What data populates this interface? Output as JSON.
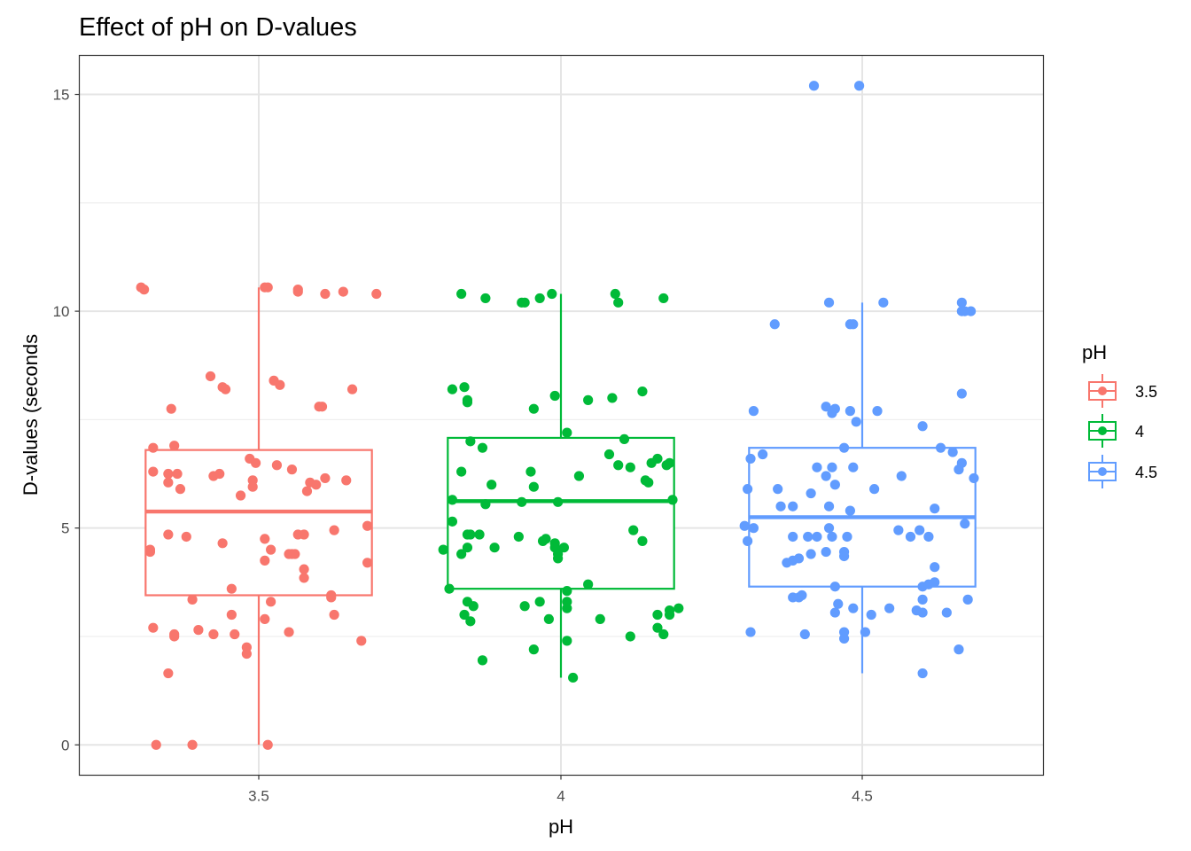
{
  "chart_data": {
    "type": "boxplot",
    "title": "Effect of pH on D-values",
    "xlabel": "pH",
    "ylabel": "D-values (seconds",
    "ylim": [
      -0.7,
      15.9
    ],
    "yticks": [
      0,
      5,
      10,
      15
    ],
    "grid": true,
    "legend": {
      "title": "pH",
      "position": "right"
    },
    "categories": [
      "3.5",
      "4",
      "4.5"
    ],
    "series": [
      {
        "name": "3.5",
        "color": "#F8766D",
        "box": {
          "lower_whisker": 0.0,
          "q1": 3.45,
          "median": 5.38,
          "q3": 6.8,
          "upper_whisker": 10.55
        },
        "points": [
          [
            -0.39,
            10.55
          ],
          [
            -0.38,
            10.5
          ],
          [
            0.02,
            10.55
          ],
          [
            0.03,
            10.55
          ],
          [
            0.13,
            10.5
          ],
          [
            0.13,
            10.45
          ],
          [
            0.22,
            10.4
          ],
          [
            0.28,
            10.45
          ],
          [
            0.39,
            10.4
          ],
          [
            -0.16,
            8.5
          ],
          [
            -0.12,
            8.25
          ],
          [
            -0.11,
            8.2
          ],
          [
            0.05,
            8.4
          ],
          [
            0.07,
            8.3
          ],
          [
            0.2,
            7.8
          ],
          [
            0.21,
            7.8
          ],
          [
            0.31,
            8.2
          ],
          [
            -0.29,
            7.75
          ],
          [
            -0.35,
            6.85
          ],
          [
            -0.28,
            6.9
          ],
          [
            -0.35,
            6.3
          ],
          [
            -0.3,
            6.25
          ],
          [
            -0.27,
            6.25
          ],
          [
            -0.3,
            6.05
          ],
          [
            -0.26,
            5.9
          ],
          [
            -0.15,
            6.2
          ],
          [
            -0.13,
            6.25
          ],
          [
            -0.06,
            5.75
          ],
          [
            -0.03,
            6.6
          ],
          [
            -0.02,
            6.1
          ],
          [
            -0.01,
            6.5
          ],
          [
            -0.02,
            5.95
          ],
          [
            0.06,
            6.45
          ],
          [
            0.11,
            6.35
          ],
          [
            0.16,
            5.85
          ],
          [
            0.17,
            6.05
          ],
          [
            0.19,
            6.0
          ],
          [
            0.22,
            6.15
          ],
          [
            0.29,
            6.1
          ],
          [
            -0.3,
            4.85
          ],
          [
            -0.24,
            4.8
          ],
          [
            -0.12,
            4.65
          ],
          [
            0.02,
            4.75
          ],
          [
            0.04,
            4.5
          ],
          [
            0.02,
            4.25
          ],
          [
            0.1,
            4.4
          ],
          [
            0.11,
            4.4
          ],
          [
            0.12,
            4.4
          ],
          [
            0.13,
            4.85
          ],
          [
            0.15,
            4.85
          ],
          [
            0.15,
            4.05
          ],
          [
            0.15,
            3.85
          ],
          [
            0.25,
            4.95
          ],
          [
            0.36,
            5.05
          ],
          [
            0.36,
            4.2
          ],
          [
            -0.36,
            4.45
          ],
          [
            -0.36,
            4.5
          ],
          [
            -0.22,
            3.35
          ],
          [
            -0.09,
            3.6
          ],
          [
            0.04,
            3.3
          ],
          [
            0.24,
            3.45
          ],
          [
            0.24,
            3.4
          ],
          [
            0.25,
            3.0
          ],
          [
            -0.09,
            3.0
          ],
          [
            0.02,
            2.9
          ],
          [
            0.1,
            2.6
          ],
          [
            0.34,
            2.4
          ],
          [
            -0.35,
            2.7
          ],
          [
            -0.28,
            2.55
          ],
          [
            -0.28,
            2.5
          ],
          [
            -0.2,
            2.65
          ],
          [
            -0.15,
            2.55
          ],
          [
            -0.08,
            2.55
          ],
          [
            -0.04,
            2.25
          ],
          [
            -0.04,
            2.1
          ],
          [
            -0.3,
            1.65
          ],
          [
            -0.34,
            0.0
          ],
          [
            -0.22,
            0.0
          ],
          [
            0.03,
            0.0
          ]
        ]
      },
      {
        "name": "4",
        "color": "#00BA38",
        "box": {
          "lower_whisker": 1.55,
          "q1": 3.6,
          "median": 5.62,
          "q3": 7.08,
          "upper_whisker": 10.4
        },
        "points": [
          [
            -0.33,
            10.4
          ],
          [
            -0.25,
            10.3
          ],
          [
            -0.13,
            10.2
          ],
          [
            -0.12,
            10.2
          ],
          [
            -0.07,
            10.3
          ],
          [
            -0.03,
            10.4
          ],
          [
            0.18,
            10.4
          ],
          [
            0.19,
            10.2
          ],
          [
            0.34,
            10.3
          ],
          [
            -0.36,
            8.2
          ],
          [
            -0.32,
            8.25
          ],
          [
            -0.31,
            7.9
          ],
          [
            -0.31,
            7.95
          ],
          [
            -0.02,
            8.05
          ],
          [
            0.09,
            7.95
          ],
          [
            0.17,
            8.0
          ],
          [
            0.27,
            8.15
          ],
          [
            -0.09,
            7.75
          ],
          [
            -0.3,
            7.0
          ],
          [
            -0.26,
            6.85
          ],
          [
            0.02,
            7.2
          ],
          [
            0.21,
            7.05
          ],
          [
            -0.33,
            6.3
          ],
          [
            -0.23,
            6.0
          ],
          [
            -0.1,
            6.3
          ],
          [
            -0.09,
            5.95
          ],
          [
            0.06,
            6.2
          ],
          [
            0.16,
            6.7
          ],
          [
            0.19,
            6.45
          ],
          [
            0.23,
            6.4
          ],
          [
            0.28,
            6.1
          ],
          [
            0.29,
            6.05
          ],
          [
            0.3,
            6.5
          ],
          [
            0.32,
            6.6
          ],
          [
            0.35,
            6.45
          ],
          [
            0.36,
            6.5
          ],
          [
            -0.36,
            5.65
          ],
          [
            -0.36,
            5.15
          ],
          [
            -0.25,
            5.55
          ],
          [
            -0.13,
            5.6
          ],
          [
            -0.01,
            5.6
          ],
          [
            0.37,
            5.65
          ],
          [
            -0.39,
            4.5
          ],
          [
            -0.33,
            4.4
          ],
          [
            -0.31,
            4.85
          ],
          [
            -0.31,
            4.55
          ],
          [
            -0.3,
            4.85
          ],
          [
            -0.27,
            4.85
          ],
          [
            -0.22,
            4.55
          ],
          [
            -0.14,
            4.8
          ],
          [
            -0.06,
            4.7
          ],
          [
            -0.05,
            4.75
          ],
          [
            -0.02,
            4.65
          ],
          [
            -0.02,
            4.55
          ],
          [
            -0.01,
            4.3
          ],
          [
            -0.01,
            4.4
          ],
          [
            0.01,
            4.55
          ],
          [
            0.24,
            4.95
          ],
          [
            0.27,
            4.7
          ],
          [
            -0.37,
            3.6
          ],
          [
            -0.31,
            3.3
          ],
          [
            0.02,
            3.55
          ],
          [
            0.02,
            3.3
          ],
          [
            0.02,
            3.15
          ],
          [
            0.09,
            3.7
          ],
          [
            -0.29,
            3.2
          ],
          [
            -0.12,
            3.2
          ],
          [
            -0.07,
            3.3
          ],
          [
            -0.04,
            2.9
          ],
          [
            0.13,
            2.9
          ],
          [
            0.32,
            3.0
          ],
          [
            0.36,
            3.0
          ],
          [
            0.36,
            3.1
          ],
          [
            0.39,
            3.15
          ],
          [
            -0.3,
            2.85
          ],
          [
            -0.32,
            3.0
          ],
          [
            0.23,
            2.5
          ],
          [
            0.32,
            2.7
          ],
          [
            0.34,
            2.55
          ],
          [
            -0.09,
            2.2
          ],
          [
            0.02,
            2.4
          ],
          [
            -0.26,
            1.95
          ],
          [
            0.04,
            1.55
          ]
        ]
      },
      {
        "name": "4.5",
        "color": "#619CFF",
        "box": {
          "lower_whisker": 1.65,
          "q1": 3.65,
          "median": 5.25,
          "q3": 6.85,
          "upper_whisker": 10.2
        },
        "points": [
          [
            -0.16,
            15.2
          ],
          [
            -0.01,
            15.2
          ],
          [
            -0.11,
            10.2
          ],
          [
            0.07,
            10.2
          ],
          [
            0.33,
            10.2
          ],
          [
            0.33,
            10.0
          ],
          [
            0.34,
            10.0
          ],
          [
            0.36,
            10.0
          ],
          [
            -0.29,
            9.7
          ],
          [
            -0.04,
            9.7
          ],
          [
            -0.03,
            9.7
          ],
          [
            0.33,
            8.1
          ],
          [
            -0.36,
            7.7
          ],
          [
            -0.12,
            7.8
          ],
          [
            -0.1,
            7.65
          ],
          [
            -0.09,
            7.75
          ],
          [
            -0.04,
            7.7
          ],
          [
            -0.02,
            7.45
          ],
          [
            0.05,
            7.7
          ],
          [
            0.2,
            7.35
          ],
          [
            -0.37,
            6.6
          ],
          [
            -0.33,
            6.7
          ],
          [
            -0.15,
            6.4
          ],
          [
            -0.1,
            6.4
          ],
          [
            -0.12,
            6.2
          ],
          [
            -0.06,
            6.85
          ],
          [
            -0.09,
            6.0
          ],
          [
            -0.03,
            6.4
          ],
          [
            0.04,
            5.9
          ],
          [
            0.13,
            6.2
          ],
          [
            0.26,
            6.85
          ],
          [
            0.3,
            6.75
          ],
          [
            0.32,
            6.35
          ],
          [
            0.33,
            6.5
          ],
          [
            0.37,
            6.15
          ],
          [
            -0.38,
            5.9
          ],
          [
            -0.28,
            5.9
          ],
          [
            -0.27,
            5.5
          ],
          [
            -0.23,
            5.5
          ],
          [
            -0.17,
            5.8
          ],
          [
            -0.11,
            5.5
          ],
          [
            -0.04,
            5.4
          ],
          [
            -0.39,
            5.05
          ],
          [
            -0.38,
            4.7
          ],
          [
            -0.36,
            5.0
          ],
          [
            -0.23,
            4.8
          ],
          [
            -0.18,
            4.8
          ],
          [
            -0.15,
            4.8
          ],
          [
            -0.11,
            5.0
          ],
          [
            -0.1,
            4.8
          ],
          [
            -0.05,
            4.8
          ],
          [
            0.12,
            4.95
          ],
          [
            0.16,
            4.8
          ],
          [
            0.19,
            4.95
          ],
          [
            0.22,
            4.8
          ],
          [
            0.24,
            5.45
          ],
          [
            0.34,
            5.1
          ],
          [
            -0.25,
            4.2
          ],
          [
            -0.23,
            4.25
          ],
          [
            -0.21,
            4.3
          ],
          [
            -0.17,
            4.4
          ],
          [
            -0.12,
            4.45
          ],
          [
            -0.06,
            4.45
          ],
          [
            -0.06,
            4.35
          ],
          [
            0.24,
            4.1
          ],
          [
            -0.23,
            3.4
          ],
          [
            -0.21,
            3.4
          ],
          [
            -0.2,
            3.45
          ],
          [
            -0.09,
            3.65
          ],
          [
            0.2,
            3.35
          ],
          [
            0.2,
            3.65
          ],
          [
            0.22,
            3.7
          ],
          [
            0.24,
            3.75
          ],
          [
            0.35,
            3.35
          ],
          [
            -0.09,
            3.05
          ],
          [
            -0.08,
            3.25
          ],
          [
            -0.03,
            3.15
          ],
          [
            0.03,
            3.0
          ],
          [
            0.09,
            3.15
          ],
          [
            0.18,
            3.1
          ],
          [
            0.2,
            3.05
          ],
          [
            0.28,
            3.05
          ],
          [
            -0.37,
            2.6
          ],
          [
            -0.19,
            2.55
          ],
          [
            -0.06,
            2.6
          ],
          [
            -0.06,
            2.45
          ],
          [
            0.01,
            2.6
          ],
          [
            0.32,
            2.2
          ],
          [
            0.2,
            1.65
          ]
        ]
      }
    ]
  }
}
